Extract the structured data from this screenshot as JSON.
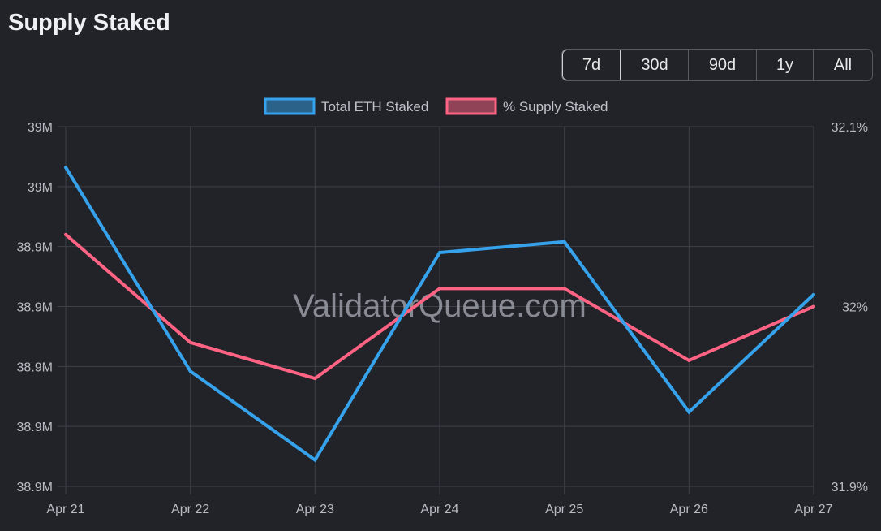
{
  "page_title": "Supply Staked",
  "range_buttons": [
    "7d",
    "30d",
    "90d",
    "1y",
    "All"
  ],
  "active_range": "7d",
  "watermark": "ValidatorQueue.com",
  "chart_data": {
    "type": "line",
    "x": [
      "Apr 21",
      "Apr 22",
      "Apr 23",
      "Apr 24",
      "Apr 25",
      "Apr 26",
      "Apr 27"
    ],
    "series": [
      {
        "name": "Total ETH Staked",
        "axis": "left",
        "color": "#36a2eb",
        "values": [
          38.9516,
          38.9346,
          38.9272,
          38.9445,
          38.9454,
          38.9312,
          38.941
        ]
      },
      {
        "name": "% Supply Staked",
        "axis": "right",
        "color": "#ff6384",
        "values": [
          32.04,
          31.98,
          31.96,
          32.01,
          32.01,
          31.97,
          32.0
        ]
      }
    ],
    "y_left": {
      "lim": [
        38.925,
        38.955
      ],
      "ticks": [
        38.925,
        38.93,
        38.935,
        38.94,
        38.945,
        38.95,
        38.955
      ],
      "tick_labels": [
        "38.9M",
        "38.9M",
        "38.9M",
        "38.9M",
        "38.9M",
        "39M",
        "39M"
      ]
    },
    "y_right": {
      "lim": [
        31.9,
        32.1
      ],
      "ticks": [
        31.9,
        32.0,
        32.1
      ],
      "tick_labels": [
        "31.9%",
        "32%",
        "32.1%"
      ]
    },
    "grid": true,
    "legend": "top"
  }
}
